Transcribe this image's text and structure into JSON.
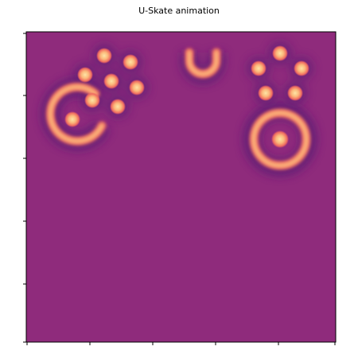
{
  "figure": {
    "title": "U-Skate animation"
  },
  "colors": {
    "background_field": "#8f2b7c",
    "halo": "#5b1a74",
    "ring_core": "#fbb87a",
    "ring_mid": "#f06b60",
    "spot_center": "#fde4a6",
    "axis": "#000000"
  },
  "scene": {
    "x_ticks": 6,
    "y_ticks": 6,
    "patterns": [
      {
        "kind": "c-ring-with-spot",
        "name": "c-ring-with-spot"
      },
      {
        "kind": "spot-cluster-left",
        "name": "spot-cluster-left",
        "count": 7
      },
      {
        "kind": "u-glider",
        "name": "u-glider"
      },
      {
        "kind": "spot-cluster-right",
        "name": "spot-cluster-right",
        "count": 5
      },
      {
        "kind": "ring-with-spot",
        "name": "ring-with-spot"
      }
    ]
  }
}
